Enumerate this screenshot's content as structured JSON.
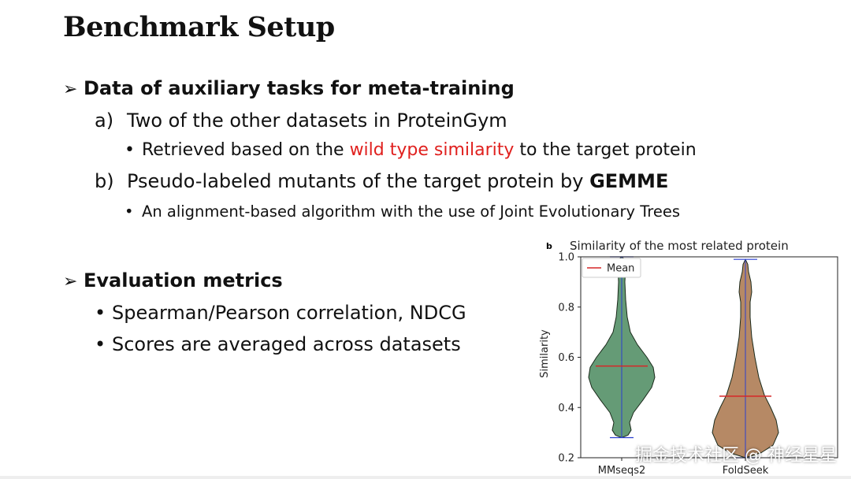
{
  "slide": {
    "title": "Benchmark Setup",
    "arrow_glyph": "➢",
    "bullet_glyph": "•",
    "section1": {
      "heading": "Data of auxiliary tasks for meta-training",
      "item_a": {
        "marker": "a)",
        "text": "Two of the other datasets in ProteinGym",
        "sub": {
          "before": "Retrieved based on the ",
          "highlight": "wild type similarity",
          "after": " to the target protein"
        }
      },
      "item_b": {
        "marker": "b)",
        "text_before": "Pseudo-labeled mutants of the target protein by ",
        "text_bold": "GEMME",
        "sub": "An alignment-based algorithm with the use of Joint Evolutionary Trees"
      }
    },
    "section2": {
      "heading": "Evaluation metrics",
      "items": [
        "Spearman/Pearson correlation, NDCG",
        "Scores are averaged across datasets"
      ]
    }
  },
  "colors": {
    "highlight": "#e0201e",
    "violin1": "#4a8a5e",
    "violin2": "#a9744a",
    "mean": "#d62728",
    "extrema": "#2a3fd0"
  },
  "chart_data": {
    "type": "violin",
    "panel_label": "b",
    "title": "Similarity of the most related protein",
    "xlabel": "",
    "ylabel": "Similarity",
    "ylim": [
      0.2,
      1.0
    ],
    "yticks": [
      "0.2",
      "0.4",
      "0.6",
      "0.8",
      "1.0"
    ],
    "categories": [
      "MMseqs2",
      "FoldSeek"
    ],
    "legend": {
      "label": "Mean",
      "position": "top-left"
    },
    "series": [
      {
        "category": "MMseqs2",
        "min": 0.28,
        "max": 1.0,
        "mean": 0.565,
        "color": "#4a8a5e"
      },
      {
        "category": "FoldSeek",
        "min": 0.2,
        "max": 0.99,
        "mean": 0.445,
        "color": "#a9744a"
      }
    ]
  },
  "watermark": "掘金技术社区 @ 神经星星"
}
